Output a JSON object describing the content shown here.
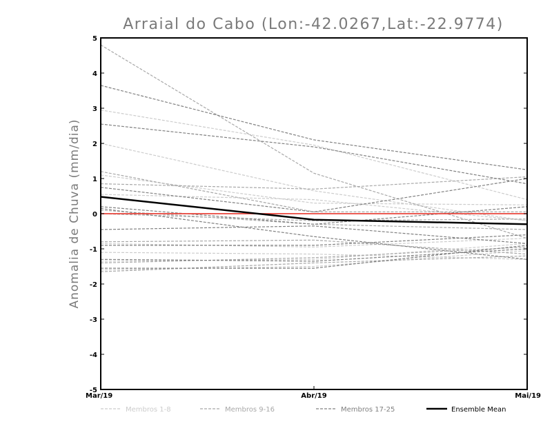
{
  "chart_data": {
    "type": "line",
    "title": "Arraial do Cabo (Lon:-42.0267,Lat:-22.9774)",
    "ylabel": "Anomalia de Chuva (mm/dia)",
    "xlabel": "",
    "categories": [
      "Mar/19",
      "Abr/19",
      "Mai/19"
    ],
    "ylim": [
      -5,
      5
    ],
    "yticks": [
      "5",
      "4",
      "3",
      "2",
      "1",
      "0",
      "-1",
      "-2",
      "-3",
      "-4",
      "-5"
    ],
    "grid": false,
    "legend_position": "bottom",
    "groups": [
      {
        "key": "g1",
        "label": "Membros 1-8",
        "color": "#cccccc"
      },
      {
        "key": "g2",
        "label": "Membros 9-16",
        "color": "#a8a8a8"
      },
      {
        "key": "g3",
        "label": "Membros 17-25",
        "color": "#808080"
      },
      {
        "key": "mean",
        "label": "Ensemble Mean",
        "color": "#000000"
      }
    ],
    "series": [
      {
        "group": "g1",
        "values": [
          2.95,
          1.95,
          0.4
        ]
      },
      {
        "group": "g1",
        "values": [
          2.0,
          0.65,
          -0.2
        ]
      },
      {
        "group": "g1",
        "values": [
          1.1,
          0.3,
          0.25
        ]
      },
      {
        "group": "g1",
        "values": [
          0.55,
          0.4,
          -0.2
        ]
      },
      {
        "group": "g1",
        "values": [
          -0.85,
          -0.95,
          -0.7
        ]
      },
      {
        "group": "g1",
        "values": [
          -1.1,
          -1.15,
          -1.3
        ]
      },
      {
        "group": "g1",
        "values": [
          -1.35,
          -1.3,
          -0.85
        ]
      },
      {
        "group": "g1",
        "values": [
          -1.6,
          -1.5,
          -1.05
        ]
      },
      {
        "group": "g2",
        "values": [
          4.8,
          1.15,
          -0.7
        ]
      },
      {
        "group": "g2",
        "values": [
          1.2,
          0.05,
          0.05
        ]
      },
      {
        "group": "g2",
        "values": [
          0.85,
          0.7,
          1.05
        ]
      },
      {
        "group": "g2",
        "values": [
          0.1,
          -0.3,
          -0.45
        ]
      },
      {
        "group": "g2",
        "values": [
          0.0,
          -0.2,
          -0.15
        ]
      },
      {
        "group": "g2",
        "values": [
          -0.8,
          -0.75,
          -1.15
        ]
      },
      {
        "group": "g2",
        "values": [
          -1.4,
          -1.25,
          -0.95
        ]
      },
      {
        "group": "g2",
        "values": [
          -1.65,
          -1.4,
          -1.2
        ]
      },
      {
        "group": "g3",
        "values": [
          3.65,
          2.1,
          1.25
        ]
      },
      {
        "group": "g3",
        "values": [
          2.55,
          1.9,
          0.85
        ]
      },
      {
        "group": "g3",
        "values": [
          0.75,
          0.05,
          1.0
        ]
      },
      {
        "group": "g3",
        "values": [
          0.2,
          -0.3,
          0.2
        ]
      },
      {
        "group": "g3",
        "values": [
          0.15,
          -0.65,
          -1.3
        ]
      },
      {
        "group": "g3",
        "values": [
          -0.45,
          -0.35,
          -0.85
        ]
      },
      {
        "group": "g3",
        "values": [
          -0.9,
          -0.9,
          -0.6
        ]
      },
      {
        "group": "g3",
        "values": [
          -1.3,
          -1.35,
          -1.0
        ]
      },
      {
        "group": "g3",
        "values": [
          -1.55,
          -1.55,
          -0.9
        ]
      },
      {
        "group": "mean",
        "values": [
          0.48,
          -0.17,
          -0.3
        ]
      }
    ],
    "reference_line": {
      "y": 0,
      "color": "#e8433a"
    }
  }
}
